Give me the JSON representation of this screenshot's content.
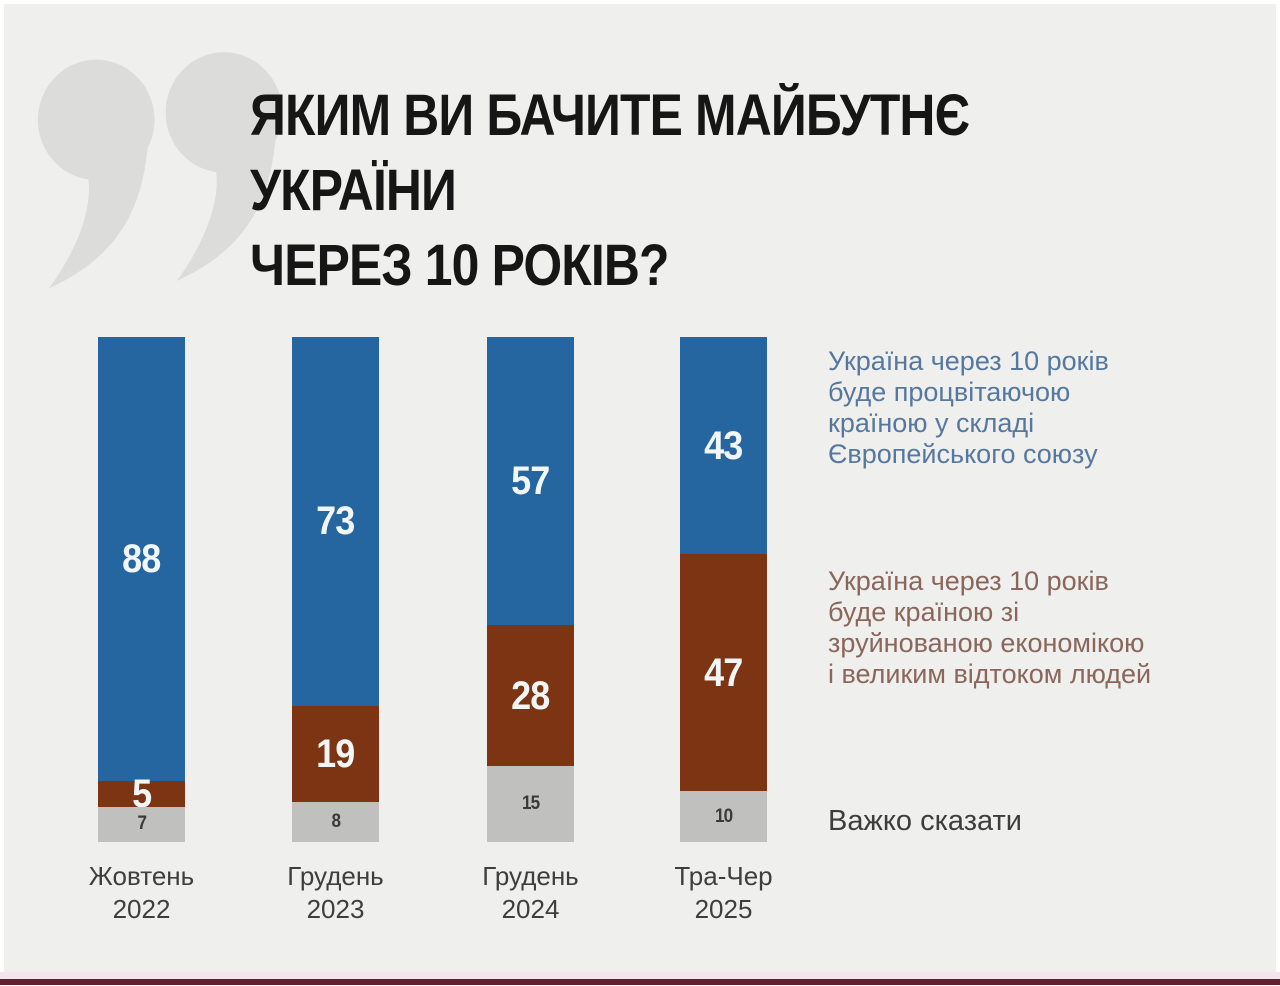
{
  "page": {
    "background": "#efefed",
    "bottom_band_color": "#f2e5ec",
    "bottom_bar_color": "#5f2130"
  },
  "header": {
    "quote_icon_color": "#dcdcda",
    "title": "ЯКИМ ВИ БАЧИТЕ МАЙБУТНЄ УКРАЇНИ\nЧЕРЕЗ 10 РОКІВ?"
  },
  "chart_data": {
    "type": "bar",
    "stacked": true,
    "orientation": "vertical",
    "unit": "percent",
    "title": "Яким ви бачите майбутнє України через 10 років?",
    "categories": [
      "Жовтень\n2022",
      "Грудень\n2023",
      "Грудень\n2024",
      "Тра-Чер\n2025"
    ],
    "series": [
      {
        "name": "Україна через 10 років буде процвітаючою країною у складі Європейського союзу",
        "color": "#2566a0",
        "values": [
          88,
          73,
          57,
          43
        ]
      },
      {
        "name": "Україна через 10 років буде країною зі зруйнованою економікою і великим відтоком людей",
        "color": "#7d3413",
        "values": [
          5,
          19,
          28,
          47
        ]
      },
      {
        "name": "Важко сказати",
        "color": "#c0c0bf",
        "values": [
          7,
          8,
          15,
          10
        ]
      }
    ],
    "ylim": [
      0,
      100
    ],
    "grid": false,
    "legend_position": "right",
    "value_labels": "inside"
  },
  "legend": {
    "eu": "Україна через 10 років\nбуде процвітаючою\nкраїною у складі\nЄвропейського союзу",
    "ruined": "Україна через 10 років\nбуде країною зі\nзруйнованою економікою\nі великим відтоком людей",
    "hard": "Важко сказати"
  }
}
